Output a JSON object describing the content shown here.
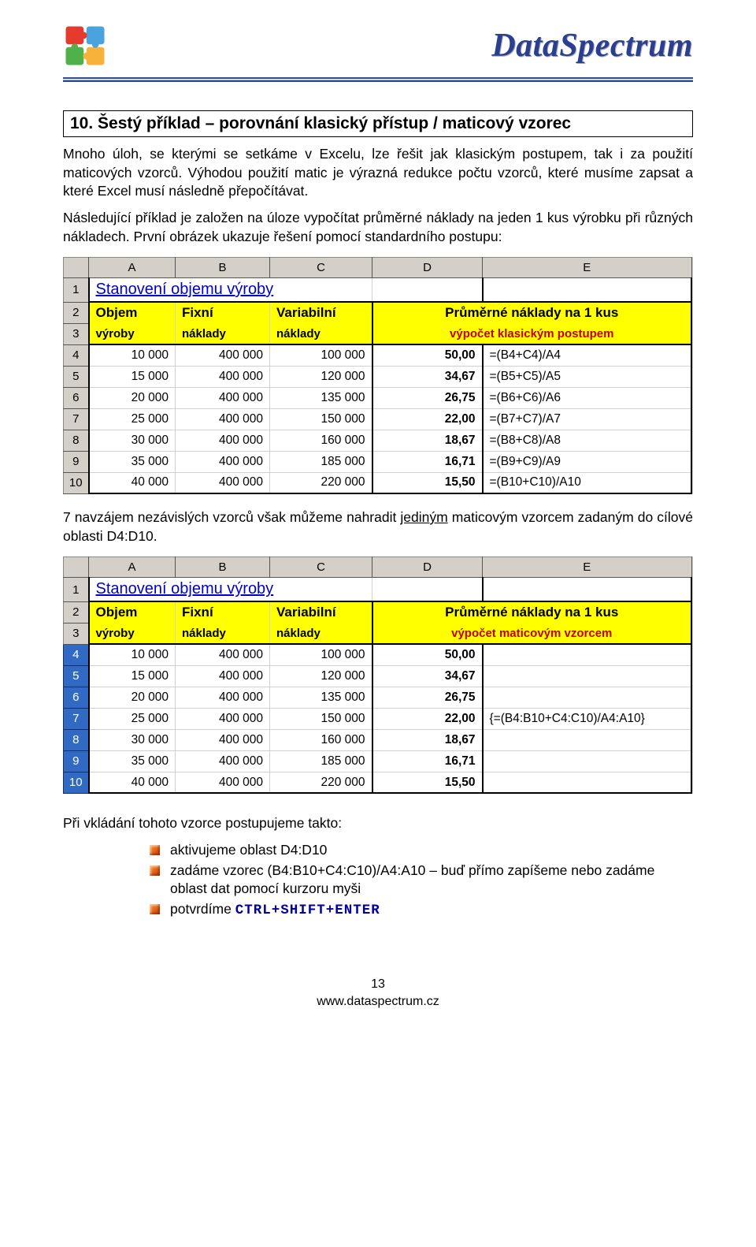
{
  "brand": "DataSpectrum",
  "section": {
    "title": "10.    Šestý příklad – porovnání klasický přístup / maticový vzorec"
  },
  "para1": "Mnoho úloh, se kterými se setkáme v Excelu, lze řešit jak klasickým postupem, tak i za použití maticových vzorců. Výhodou použití matic je výrazná redukce počtu vzorců, které musíme zapsat a které Excel musí následně přepočítávat.",
  "para2": "Následující příklad je založen na úloze vypočítat průměrné náklady na jeden 1 kus výrobku při různých nákladech. První obrázek ukazuje řešení pomocí standardního postupu:",
  "para3pre": "7 navzájem nezávislých vzorců však můžeme nahradit ",
  "para3mid": "jediným",
  "para3post": " maticovým vzorcem zadaným do cílové oblasti D4:D10.",
  "para4": "Při vkládání tohoto vzorce postupujeme takto:",
  "bullets": [
    "aktivujeme oblast D4:D10",
    "zadáme vzorec (B4:B10+C4:C10)/A4:A10 – buď přímo zapíšeme nebo zadáme oblast dat pomocí kurzoru myši",
    "potvrdíme "
  ],
  "ctrl": "CTRL+SHIFT+ENTER",
  "tab1": {
    "title": "Stanovení objemu výroby",
    "h1a": "Objem",
    "h1b": "Fixní",
    "h1c": "Variabilní",
    "h1de": "Průměrné náklady na 1 kus",
    "h2a": "výroby",
    "h2b": "náklady",
    "h2c": "náklady",
    "h2de": "výpočet klasickým postupem",
    "rows": [
      {
        "r": "4",
        "a": "10 000",
        "b": "400 000",
        "c": "100 000",
        "d": "50,00",
        "e": "=(B4+C4)/A4"
      },
      {
        "r": "5",
        "a": "15 000",
        "b": "400 000",
        "c": "120 000",
        "d": "34,67",
        "e": "=(B5+C5)/A5"
      },
      {
        "r": "6",
        "a": "20 000",
        "b": "400 000",
        "c": "135 000",
        "d": "26,75",
        "e": "=(B6+C6)/A6"
      },
      {
        "r": "7",
        "a": "25 000",
        "b": "400 000",
        "c": "150 000",
        "d": "22,00",
        "e": "=(B7+C7)/A7"
      },
      {
        "r": "8",
        "a": "30 000",
        "b": "400 000",
        "c": "160 000",
        "d": "18,67",
        "e": "=(B8+C8)/A8"
      },
      {
        "r": "9",
        "a": "35 000",
        "b": "400 000",
        "c": "185 000",
        "d": "16,71",
        "e": "=(B9+C9)/A9"
      },
      {
        "r": "10",
        "a": "40 000",
        "b": "400 000",
        "c": "220 000",
        "d": "15,50",
        "e": "=(B10+C10)/A10"
      }
    ]
  },
  "tab2": {
    "title": "Stanovení objemu výroby",
    "h1a": "Objem",
    "h1b": "Fixní",
    "h1c": "Variabilní",
    "h1de": "Průměrné náklady na 1 kus",
    "h2a": "výroby",
    "h2b": "náklady",
    "h2c": "náklady",
    "h2de": "výpočet maticovým vzorcem",
    "rows": [
      {
        "r": "4",
        "a": "10 000",
        "b": "400 000",
        "c": "100 000",
        "d": "50,00",
        "e": ""
      },
      {
        "r": "5",
        "a": "15 000",
        "b": "400 000",
        "c": "120 000",
        "d": "34,67",
        "e": ""
      },
      {
        "r": "6",
        "a": "20 000",
        "b": "400 000",
        "c": "135 000",
        "d": "26,75",
        "e": ""
      },
      {
        "r": "7",
        "a": "25 000",
        "b": "400 000",
        "c": "150 000",
        "d": "22,00",
        "e": "{=(B4:B10+C4:C10)/A4:A10}"
      },
      {
        "r": "8",
        "a": "30 000",
        "b": "400 000",
        "c": "160 000",
        "d": "18,67",
        "e": ""
      },
      {
        "r": "9",
        "a": "35 000",
        "b": "400 000",
        "c": "185 000",
        "d": "16,71",
        "e": ""
      },
      {
        "r": "10",
        "a": "40 000",
        "b": "400 000",
        "c": "220 000",
        "d": "15,50",
        "e": ""
      }
    ]
  },
  "footer": {
    "page": "13",
    "url": "www.dataspectrum.cz"
  }
}
